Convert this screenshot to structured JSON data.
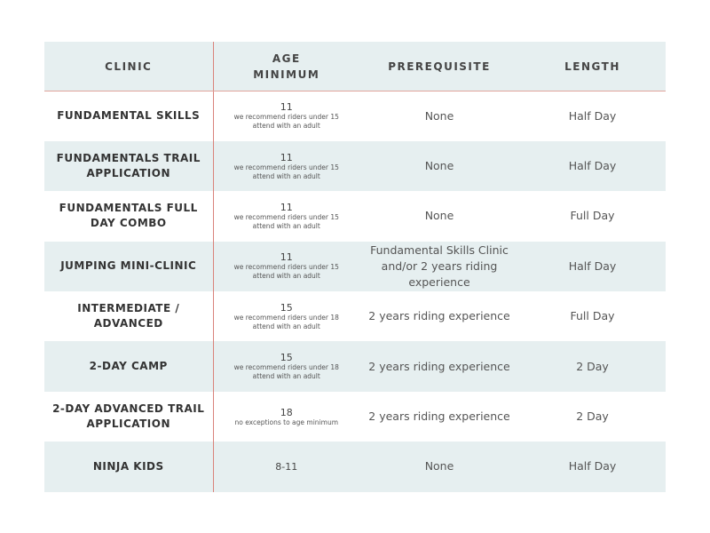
{
  "table": {
    "headers": [
      "CLINIC",
      "AGE MINIMUM",
      "PREREQUISITE",
      "LENGTH"
    ],
    "rows": [
      {
        "clinic": "FUNDAMENTAL SKILLS",
        "age": "11",
        "note": "we recommend riders under 15 attend with an adult",
        "prerequisite": "None",
        "length": "Half Day"
      },
      {
        "clinic": "FUNDAMENTALS TRAIL APPLICATION",
        "age": "11",
        "note": "we recommend riders under 15 attend with an adult",
        "prerequisite": "None",
        "length": "Half Day"
      },
      {
        "clinic": "FUNDAMENTALS FULL DAY COMBO",
        "age": "11",
        "note": "we recommend riders under 15 attend with an adult",
        "prerequisite": "None",
        "length": "Full Day"
      },
      {
        "clinic": "JUMPING MINI-CLINIC",
        "age": "11",
        "note": "we recommend riders under 15 attend with an adult",
        "prerequisite": "Fundamental Skills Clinic and/or 2 years riding experience",
        "length": "Half Day"
      },
      {
        "clinic": "INTERMEDIATE / ADVANCED",
        "age": "15",
        "note": "we recommend riders under 18 attend with an adult",
        "prerequisite": "2 years riding experience",
        "length": "Full Day"
      },
      {
        "clinic": "2-DAY CAMP",
        "age": "15",
        "note": "we recommend riders under 18 attend with an adult",
        "prerequisite": "2 years riding experience",
        "length": "2 Day"
      },
      {
        "clinic": "2-DAY ADVANCED TRAIL APPLICATION",
        "age": "18",
        "note": "no exceptions to age minimum",
        "prerequisite": "2 years riding experience",
        "length": "2 Day"
      },
      {
        "clinic": "NINJA KIDS",
        "age": "8-11",
        "note": null,
        "prerequisite": "None",
        "length": "Half Day"
      }
    ]
  }
}
